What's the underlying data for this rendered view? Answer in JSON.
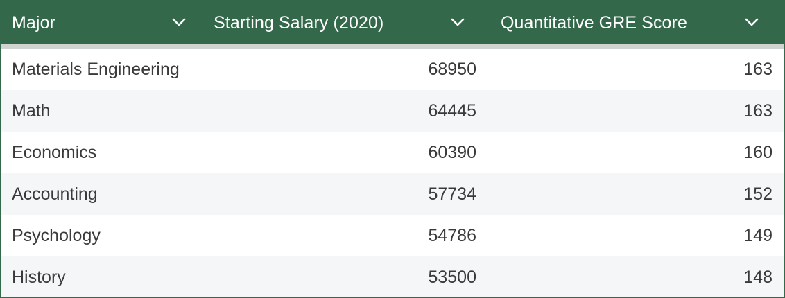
{
  "table": {
    "columns": [
      {
        "label": "Major",
        "icon": "chevron-down-icon"
      },
      {
        "label": "Starting Salary (2020)",
        "icon": "chevron-down-icon"
      },
      {
        "label": "Quantitative GRE Score",
        "icon": "chevron-down-icon"
      }
    ],
    "rows": [
      {
        "major": "Materials Engineering",
        "salary": "68950",
        "gre": "163"
      },
      {
        "major": "Math",
        "salary": "64445",
        "gre": "163"
      },
      {
        "major": "Economics",
        "salary": "60390",
        "gre": "160"
      },
      {
        "major": "Accounting",
        "salary": "57734",
        "gre": "152"
      },
      {
        "major": "Psychology",
        "salary": "54786",
        "gre": "149"
      },
      {
        "major": "History",
        "salary": "53500",
        "gre": "148"
      }
    ]
  },
  "colors": {
    "header_bg": "#33694a",
    "header_text": "#ffffff",
    "row_alt_bg": "#f4f6f8",
    "body_text": "#3a3a3a",
    "divider": "#cfd4d0"
  }
}
